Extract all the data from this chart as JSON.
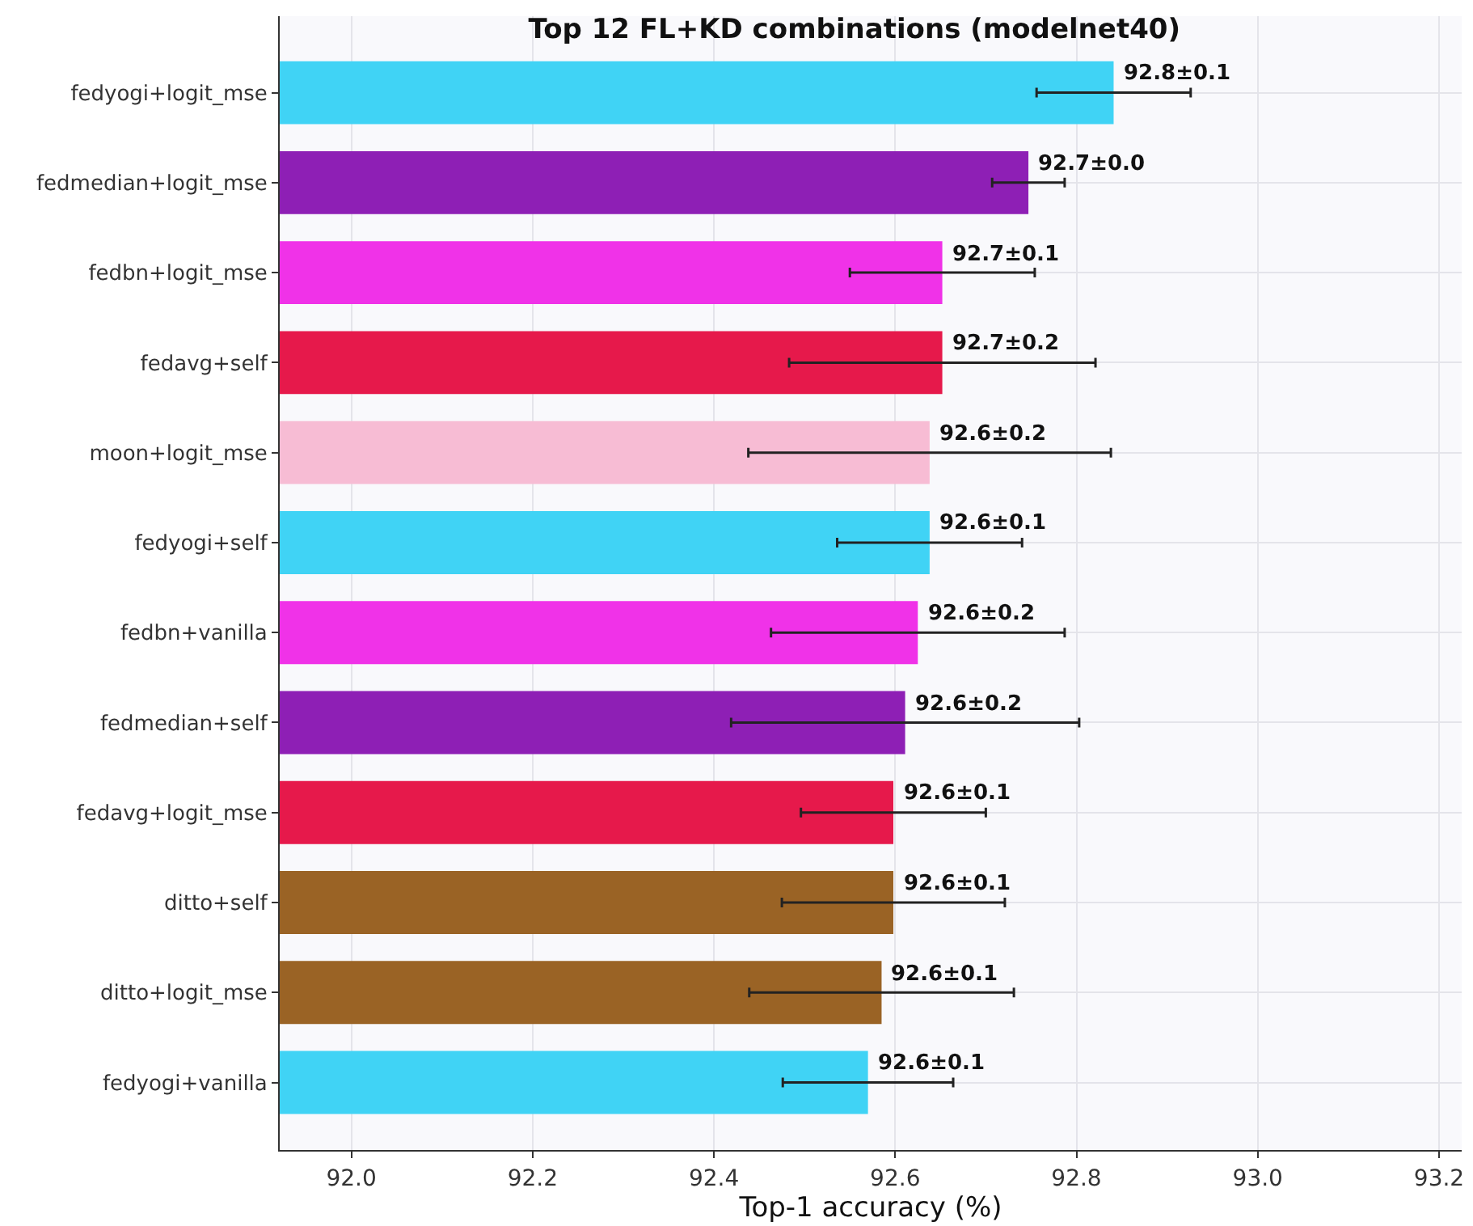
{
  "chart_data": {
    "type": "bar",
    "orientation": "horizontal",
    "title": "Top 12 FL+KD combinations (modelnet40)",
    "xlabel": "Top-1 accuracy (%)",
    "categories": [
      "fedyogi+logit_mse",
      "fedmedian+logit_mse",
      "fedbn+logit_mse",
      "fedavg+self",
      "moon+logit_mse",
      "fedyogi+self",
      "fedbn+vanilla",
      "fedmedian+self",
      "fedavg+logit_mse",
      "ditto+self",
      "ditto+logit_mse",
      "fedyogi+vanilla"
    ],
    "values": [
      92.841,
      92.747,
      92.652,
      92.652,
      92.638,
      92.638,
      92.625,
      92.611,
      92.598,
      92.598,
      92.585,
      92.57
    ],
    "errors": [
      0.085,
      0.04,
      0.102,
      0.169,
      0.2,
      0.102,
      0.162,
      0.192,
      0.102,
      0.123,
      0.146,
      0.094
    ],
    "value_labels": [
      "92.8±0.1",
      "92.7±0.0",
      "92.7±0.1",
      "92.7±0.2",
      "92.6±0.2",
      "92.6±0.1",
      "92.6±0.2",
      "92.6±0.2",
      "92.6±0.1",
      "92.6±0.1",
      "92.6±0.1",
      "92.6±0.1"
    ],
    "colors": [
      "#40d3f5",
      "#8e1fb5",
      "#f032e8",
      "#e6194b",
      "#f7bcd4",
      "#40d3f5",
      "#f032e8",
      "#8e1fb5",
      "#e6194b",
      "#9a6325",
      "#9a6325",
      "#40d3f5"
    ],
    "xlim": [
      91.921,
      93.225
    ],
    "xticks": [
      {
        "value": 92.0,
        "label": "92.0"
      },
      {
        "value": 92.2,
        "label": "92.2"
      },
      {
        "value": 92.4,
        "label": "92.4"
      },
      {
        "value": 92.6,
        "label": "92.6"
      },
      {
        "value": 92.8,
        "label": "92.8"
      },
      {
        "value": 93.0,
        "label": "93.0"
      },
      {
        "value": 93.2,
        "label": "93.2"
      }
    ],
    "grid": true
  }
}
